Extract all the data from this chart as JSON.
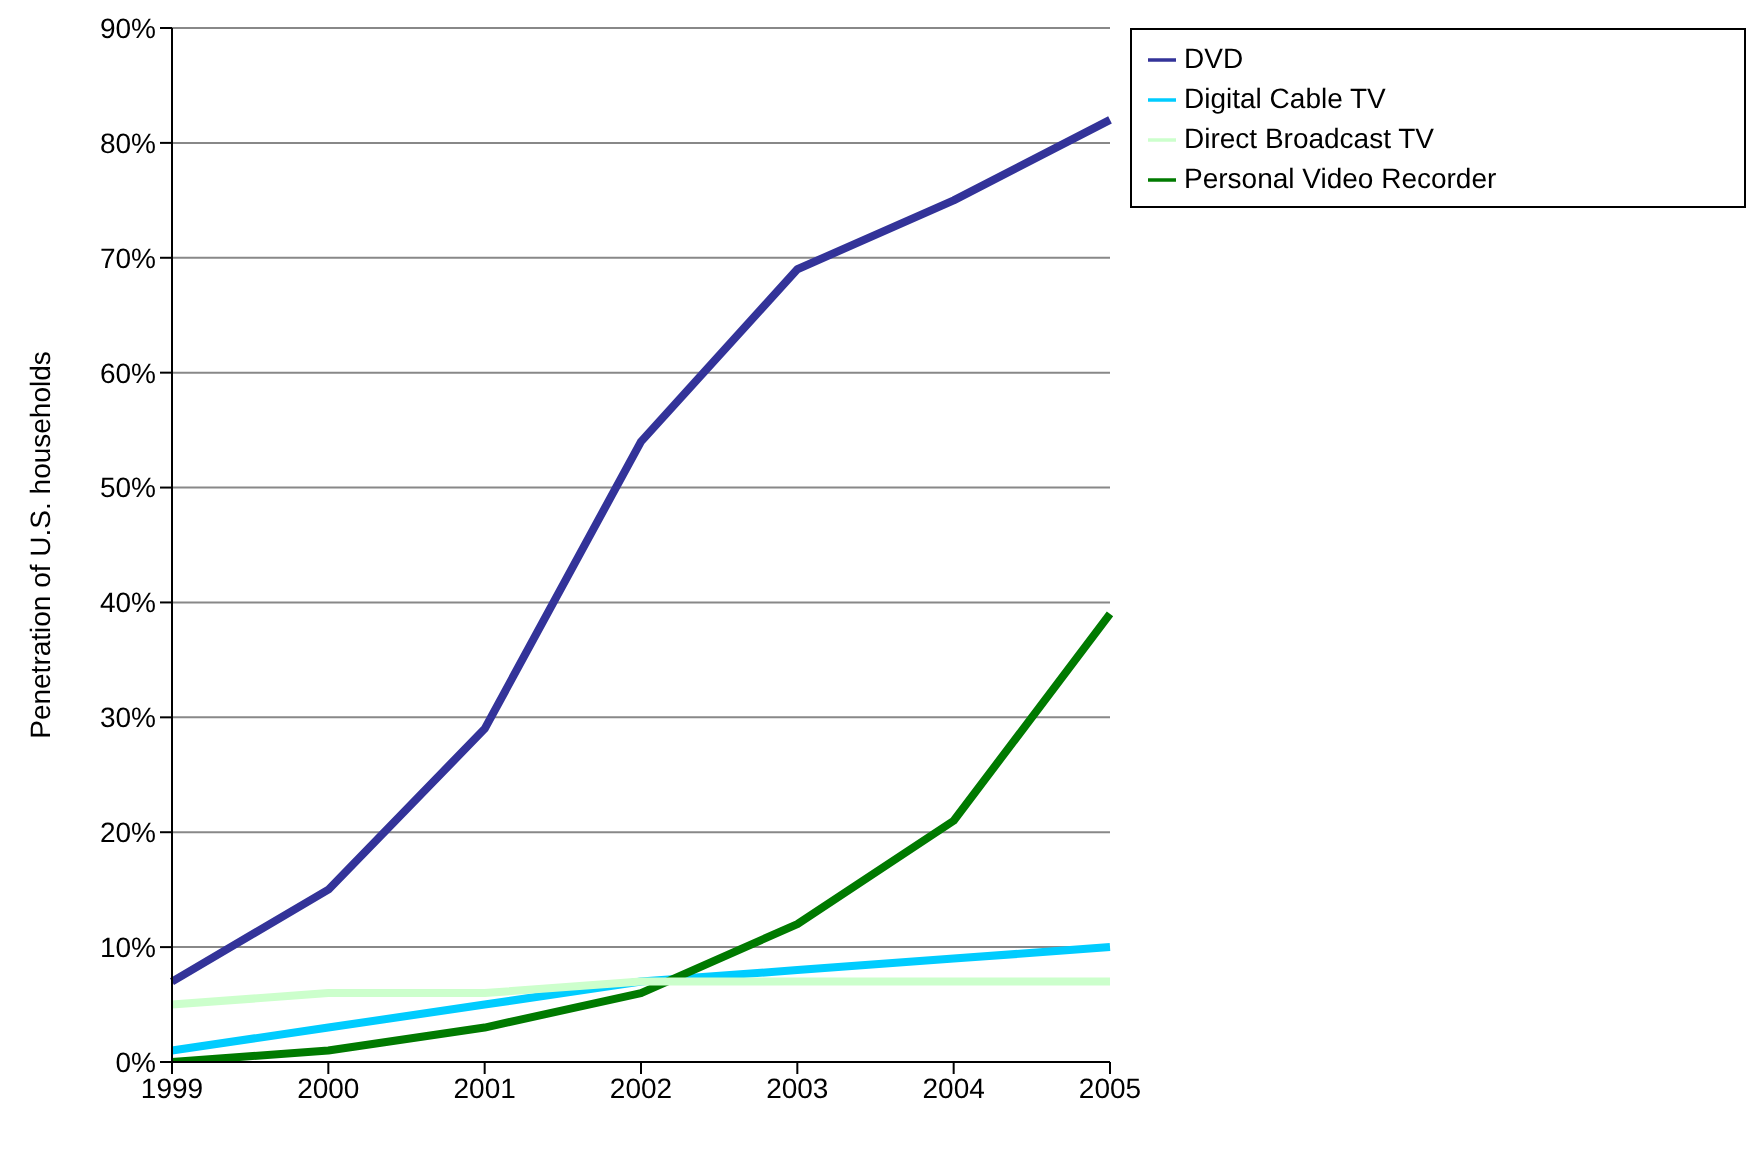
{
  "chart_data": {
    "type": "line",
    "ylabel": "Penetration of U.S. households",
    "categories": [
      "1999",
      "2000",
      "2001",
      "2002",
      "2003",
      "2004",
      "2005"
    ],
    "series": [
      {
        "name": "Digital Cable TV",
        "color": "#00ccff",
        "values": [
          1,
          3,
          5,
          7,
          8,
          9,
          10
        ]
      },
      {
        "name": "Personal Video Recorder",
        "color": "#007a00",
        "values": [
          0,
          1,
          3,
          6,
          12,
          21,
          39
        ]
      },
      {
        "name": "Direct Broadcast TV",
        "color": "#ccffcc",
        "values": [
          5,
          6,
          6,
          7,
          7,
          7,
          7
        ]
      },
      {
        "name": "DVD",
        "color": "#333399",
        "values": [
          7,
          15,
          29,
          54,
          69,
          75,
          82
        ]
      }
    ],
    "ylim": [
      0,
      90
    ],
    "yticks": [
      {
        "value": 0,
        "label": "0%"
      },
      {
        "value": 10,
        "label": "10%"
      },
      {
        "value": 20,
        "label": "20%"
      },
      {
        "value": 30,
        "label": "30%"
      },
      {
        "value": 40,
        "label": "40%"
      },
      {
        "value": 50,
        "label": "50%"
      },
      {
        "value": 60,
        "label": "60%"
      },
      {
        "value": 70,
        "label": "70%"
      },
      {
        "value": 80,
        "label": "80%"
      },
      {
        "value": 90,
        "label": "90%"
      }
    ],
    "grid": "y",
    "legend": "top right",
    "marker": "none",
    "line_style": "solid"
  }
}
